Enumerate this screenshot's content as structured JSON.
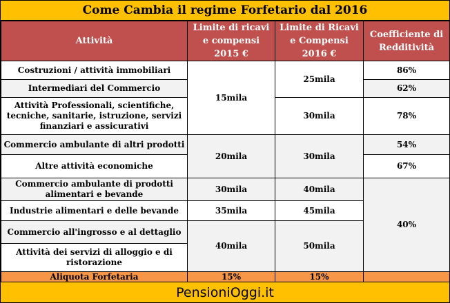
{
  "title": "Come Cambia il regime Forfetario dal 2016",
  "headers": {
    "attivita": "Attività",
    "limite_2015": "Limite di ricavi e compensi 2015 €",
    "limite_2016": "Limite di Ricavi e Compensi 2016 €",
    "coefficiente": "Coefficiente di Redditività"
  },
  "rows": [
    {
      "attivita": "Costruzioni / attività immobiliari",
      "coefficiente": "86%"
    },
    {
      "attivita": "Intermediari del Commercio",
      "coefficiente": "62%"
    },
    {
      "attivita": "Attività Professionali, scientifiche, tecniche, sanitarie, istruzione, servizi finanziari e assicurativi",
      "coefficiente": "78%"
    },
    {
      "attivita": "Commercio ambulante di altri prodotti",
      "coefficiente": "54%"
    },
    {
      "attivita": "Altre attività economiche",
      "coefficiente": "67%"
    },
    {
      "attivita": "Commercio ambulante di prodotti alimentari e bevande"
    },
    {
      "attivita": "Industrie alimentari e delle bevande"
    },
    {
      "attivita": "Commercio all'ingrosso e al dettaglio"
    },
    {
      "attivita": "Attività dei servizi di alloggio e di ristorazione"
    }
  ],
  "limits": {
    "group_a_2015": "15mila",
    "group_a1_2016": "25mila",
    "group_a2_2016": "30mila",
    "group_b_2015": "20mila",
    "group_b_2016": "30mila",
    "row6_2015": "30mila",
    "row6_2016": "40mila",
    "row7_2015": "35mila",
    "row7_2016": "45mila",
    "group_c_2015": "40mila",
    "group_c_2016": "50mila",
    "shared_coefficiente": "40%"
  },
  "footer": {
    "label": "Aliquota Forfetaria",
    "value_2015": "15%",
    "value_2016": "15%",
    "value_coeff": ""
  },
  "brand": "PensioniOggi.it",
  "colors": {
    "title_bg": "#fec000",
    "header_bg": "#c0504d",
    "footer_bg": "#f79646",
    "row_shade": "#f2f2f2"
  }
}
